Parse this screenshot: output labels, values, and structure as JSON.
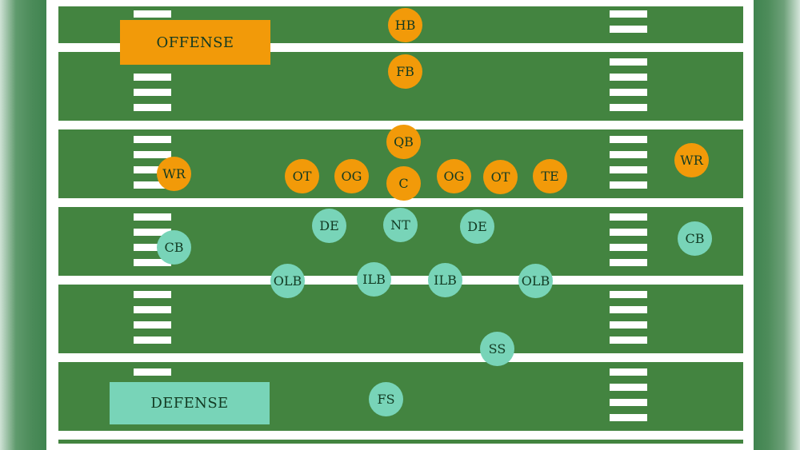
{
  "labels": {
    "offense": "OFFENSE",
    "defense": "DEFENSE"
  },
  "colors": {
    "field": "#438440",
    "lines": "#ffffff",
    "offense": "#f29a09",
    "defense": "#78d4b8",
    "text": "#123a22"
  },
  "players": {
    "offense": {
      "hb": "HB",
      "fb": "FB",
      "qb": "QB",
      "c": "C",
      "wr_left": "WR",
      "ot_left": "OT",
      "og_left": "OG",
      "og_right": "OG",
      "ot_right": "OT",
      "te": "TE",
      "wr_right": "WR"
    },
    "defense": {
      "cb_left": "CB",
      "de_left": "DE",
      "nt": "NT",
      "de_right": "DE",
      "cb_right": "CB",
      "olb_left": "OLB",
      "ilb_left": "ILB",
      "ilb_right": "ILB",
      "olb_right": "OLB",
      "ss": "SS",
      "fs": "FS"
    }
  }
}
